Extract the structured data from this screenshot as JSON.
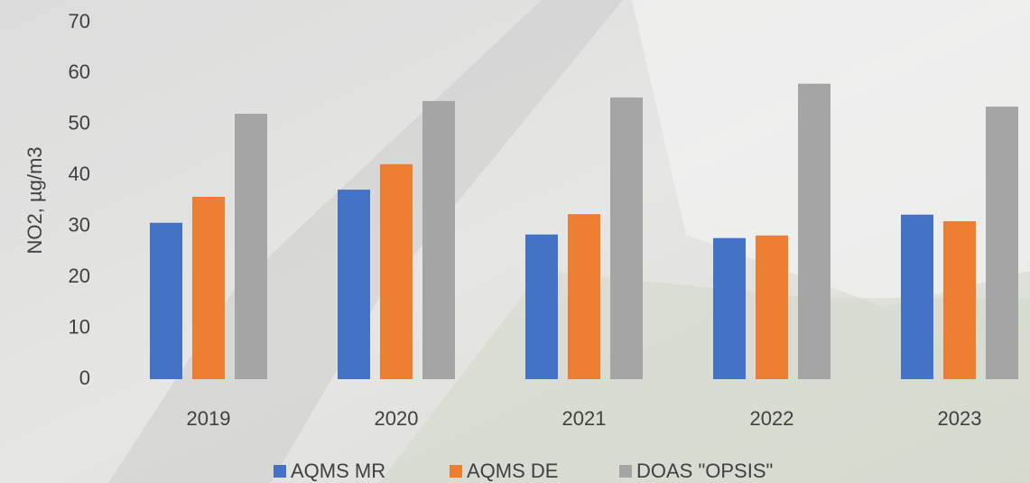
{
  "chart_data": {
    "type": "bar",
    "ylabel": "NO2, µg/m3",
    "categories": [
      "2019",
      "2020",
      "2021",
      "2022",
      "2023"
    ],
    "series": [
      {
        "name": "AQMS MR",
        "color": "#4472c4",
        "values": [
          30.7,
          37.2,
          28.4,
          27.7,
          32.3
        ]
      },
      {
        "name": "AQMS DE",
        "color": "#ed7d31",
        "values": [
          35.8,
          42.2,
          32.4,
          28.2,
          31.0
        ]
      },
      {
        "name": "DOAS \"OPSIS\"",
        "color": "#a5a5a5",
        "values": [
          52.1,
          54.6,
          55.3,
          58.0,
          53.5
        ]
      }
    ],
    "ylim": [
      0,
      70
    ],
    "yticks": [
      0,
      10,
      20,
      30,
      40,
      50,
      60,
      70
    ],
    "grid": false,
    "legend": "bottom"
  }
}
